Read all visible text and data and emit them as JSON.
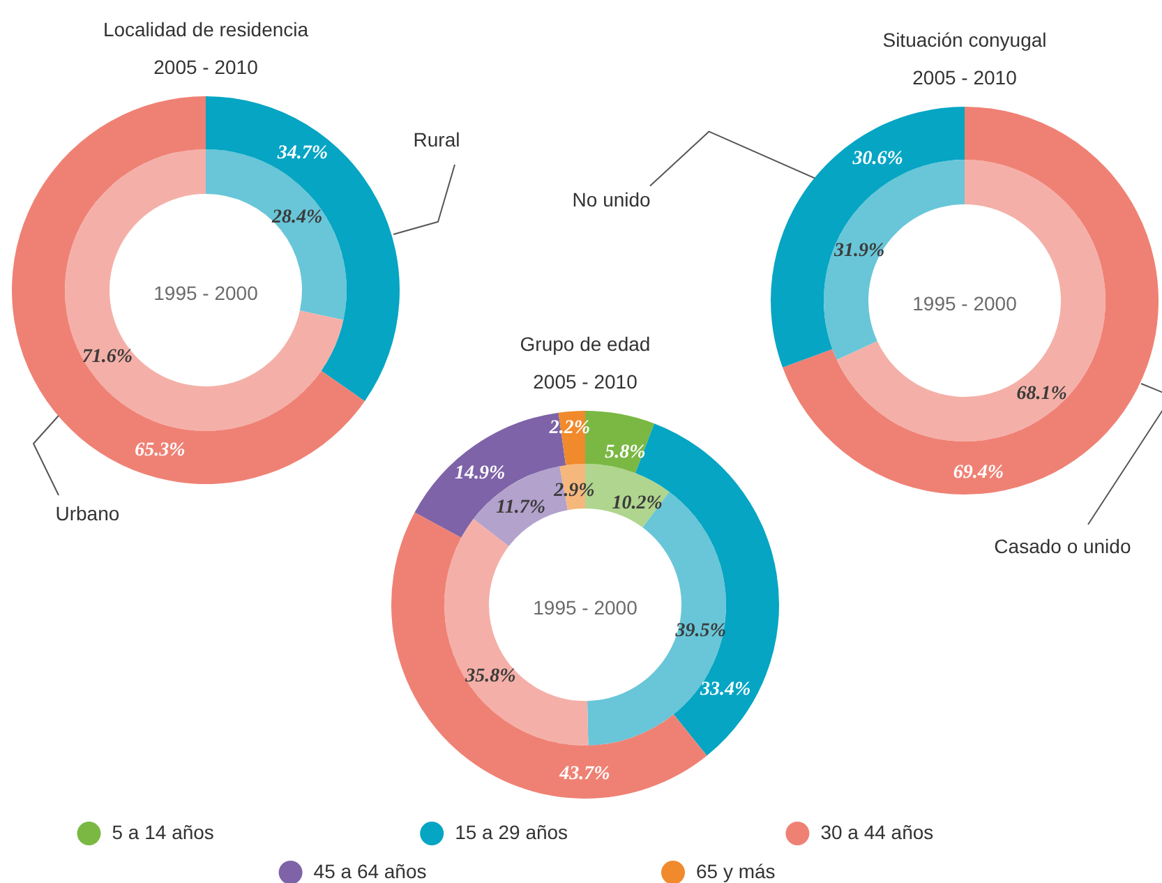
{
  "chart_data": [
    {
      "type": "donut",
      "title": "Localidad de residencia",
      "subtitle": "2005 - 2010",
      "annotations": [
        "1995 - 2000"
      ],
      "categories": [
        "Rural",
        "Urbano"
      ],
      "series": [
        {
          "values": [
            34.7,
            65.3
          ],
          "colors": [
            "#05a5c3",
            "#ef8174"
          ],
          "value_labels": [
            "34.7%",
            "65.3%"
          ]
        },
        {
          "values": [
            28.4,
            71.6
          ],
          "colors": [
            "#68c6d8",
            "#f4b0a8"
          ],
          "value_labels": [
            "28.4%",
            "71.6%"
          ]
        }
      ]
    },
    {
      "type": "donut",
      "title": "Situación conyugal",
      "subtitle": "2005 - 2010",
      "annotations": [
        "1995 - 2000"
      ],
      "categories": [
        "Casado o unido",
        "No unido"
      ],
      "series": [
        {
          "values": [
            69.4,
            30.6
          ],
          "colors": [
            "#ef8174",
            "#05a5c3"
          ],
          "value_labels": [
            "69.4%",
            "30.6%"
          ]
        },
        {
          "values": [
            68.1,
            31.9
          ],
          "colors": [
            "#f4b0a8",
            "#68c6d8"
          ],
          "value_labels": [
            "68.1%",
            "31.9%"
          ]
        }
      ]
    },
    {
      "type": "donut",
      "title": "Grupo de edad",
      "subtitle": "2005 - 2010",
      "annotations": [
        "1995 - 2000"
      ],
      "categories": [
        "5 a 14 años",
        "15 a 29 años",
        "30 a 44 años",
        "45 a 64 años",
        "65 y más"
      ],
      "legend": "bottom",
      "series": [
        {
          "values": [
            5.8,
            33.4,
            43.7,
            14.9,
            2.2
          ],
          "colors": [
            "#7ab843",
            "#05a5c3",
            "#ef8174",
            "#7e63a8",
            "#f08a2c"
          ],
          "value_labels": [
            "5.8%",
            "33.4%",
            "43.7%",
            "14.9%",
            "2.2%"
          ]
        },
        {
          "values": [
            10.2,
            39.5,
            35.8,
            11.7,
            2.9
          ],
          "colors": [
            "#b0d58e",
            "#68c6d8",
            "#f4b0a8",
            "#b3a2cc",
            "#f6b77c"
          ],
          "value_labels": [
            "10.2%",
            "39.5%",
            "35.8%",
            "11.7%",
            "2.9%"
          ]
        }
      ]
    }
  ]
}
